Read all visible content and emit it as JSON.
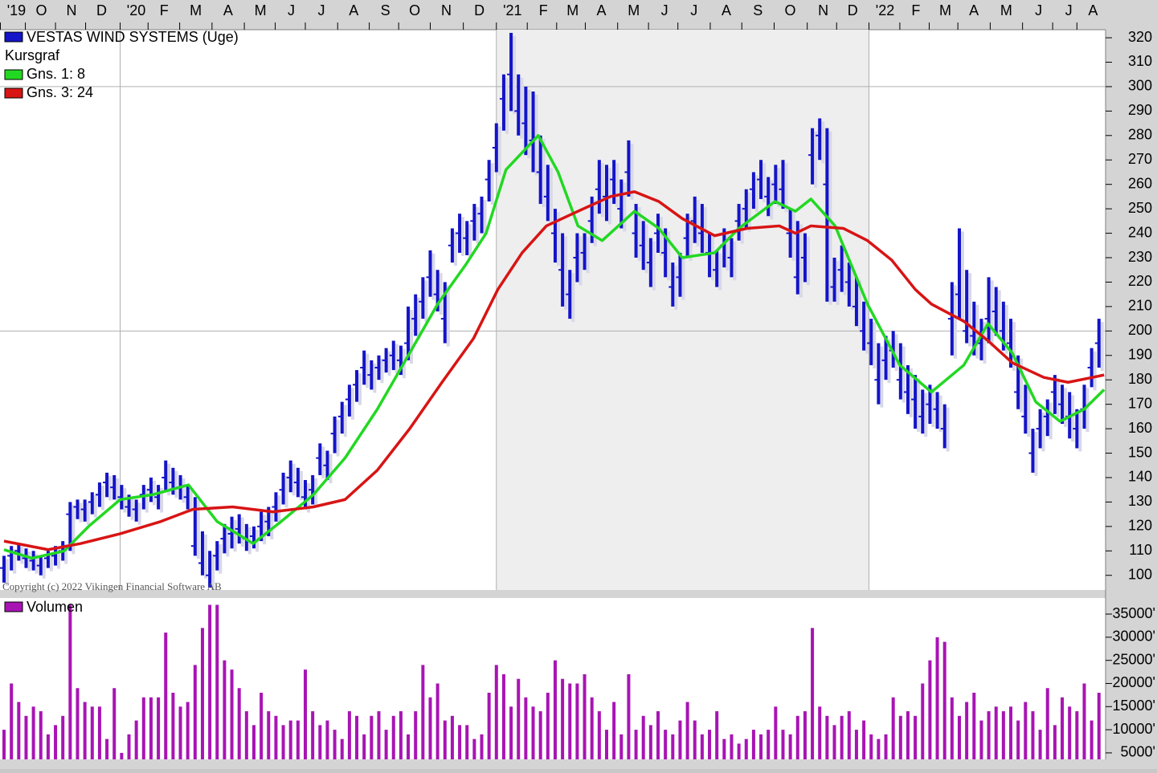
{
  "chart_data": [
    {
      "type": "ohlc",
      "title": "VESTAS WIND SYSTEMS (Uge)",
      "subtitle": "Kursgraf",
      "color": "#1414c8",
      "copyright": "Copyright (c) 2022 Vikingen Financial Software AB",
      "high": [
        108,
        112,
        113,
        111,
        110,
        108,
        110,
        112,
        114,
        130,
        131,
        131,
        134,
        138,
        142,
        141,
        137,
        133,
        131,
        137,
        140,
        137,
        147,
        144,
        141,
        137,
        132,
        118,
        110,
        114,
        121,
        124,
        125,
        121,
        120,
        126,
        128,
        134,
        142,
        147,
        144,
        139,
        141,
        154,
        151,
        165,
        171,
        178,
        184,
        192,
        188,
        190,
        193,
        196,
        194,
        210,
        215,
        222,
        233,
        225,
        220,
        242,
        248,
        245,
        252,
        255,
        270,
        285,
        305,
        322,
        305,
        300,
        298,
        280,
        268,
        250,
        240,
        225,
        240,
        240,
        255,
        270,
        268,
        270,
        262,
        278,
        252,
        245,
        238,
        248,
        242,
        228,
        232,
        248,
        255,
        252,
        240,
        233,
        242,
        238,
        252,
        258,
        265,
        270,
        263,
        268,
        270,
        250,
        245,
        240,
        283,
        287,
        283,
        230,
        235,
        228,
        222,
        212,
        205,
        195,
        198,
        200,
        195,
        186,
        182,
        176,
        178,
        175,
        170,
        220,
        242,
        225,
        212,
        205,
        222,
        218,
        212,
        205,
        190,
        178,
        160,
        168,
        172,
        182,
        178,
        175,
        168,
        178,
        193,
        205
      ],
      "low": [
        97,
        102,
        106,
        103,
        102,
        100,
        103,
        104,
        106,
        110,
        123,
        122,
        125,
        128,
        132,
        131,
        127,
        124,
        122,
        127,
        130,
        127,
        134,
        133,
        131,
        127,
        108,
        100,
        95,
        102,
        109,
        111,
        113,
        110,
        111,
        114,
        116,
        122,
        129,
        134,
        132,
        127,
        129,
        141,
        139,
        150,
        158,
        165,
        171,
        178,
        176,
        180,
        183,
        184,
        182,
        188,
        198,
        205,
        214,
        208,
        195,
        228,
        232,
        231,
        237,
        240,
        253,
        265,
        282,
        290,
        280,
        272,
        265,
        252,
        245,
        228,
        210,
        205,
        220,
        225,
        236,
        248,
        245,
        252,
        242,
        255,
        230,
        225,
        218,
        232,
        222,
        210,
        214,
        230,
        236,
        232,
        222,
        218,
        226,
        222,
        237,
        242,
        250,
        254,
        247,
        252,
        250,
        230,
        215,
        220,
        260,
        270,
        212,
        212,
        216,
        210,
        202,
        192,
        186,
        170,
        180,
        185,
        172,
        166,
        160,
        158,
        162,
        160,
        152,
        190,
        205,
        195,
        190,
        188,
        195,
        198,
        192,
        185,
        168,
        158,
        142,
        152,
        157,
        166,
        162,
        156,
        152,
        160,
        177,
        185
      ],
      "close": [
        103,
        108,
        110,
        107,
        106,
        104,
        107,
        108,
        110,
        125,
        128,
        127,
        130,
        133,
        138,
        136,
        132,
        128,
        127,
        133,
        135,
        132,
        140,
        138,
        136,
        132,
        112,
        105,
        100,
        108,
        115,
        117,
        119,
        115,
        116,
        120,
        122,
        128,
        135,
        140,
        138,
        132,
        135,
        148,
        145,
        158,
        165,
        172,
        178,
        185,
        182,
        185,
        188,
        190,
        188,
        195,
        205,
        212,
        222,
        215,
        205,
        235,
        240,
        238,
        245,
        248,
        262,
        275,
        295,
        305,
        290,
        285,
        278,
        265,
        255,
        240,
        225,
        215,
        230,
        232,
        245,
        258,
        255,
        262,
        250,
        265,
        240,
        235,
        228,
        240,
        232,
        218,
        222,
        238,
        245,
        240,
        232,
        225,
        235,
        230,
        245,
        250,
        258,
        262,
        255,
        260,
        258,
        240,
        222,
        230,
        272,
        280,
        260,
        218,
        225,
        220,
        210,
        200,
        195,
        180,
        188,
        192,
        180,
        175,
        172,
        165,
        170,
        168,
        160,
        205,
        215,
        200,
        198,
        195,
        205,
        208,
        200,
        195,
        175,
        165,
        150,
        160,
        165,
        175,
        170,
        165,
        160,
        168,
        185,
        195
      ],
      "overlays": [
        {
          "name": "Gns. 1: 8",
          "color": "#22d822",
          "x": [
            0,
            3.8,
            8.2,
            11.5,
            15.8,
            20.2,
            25.1,
            29,
            33.9,
            37.7,
            42.1,
            46.4,
            50.8,
            55.2,
            59,
            62.8,
            65.6,
            68.3,
            72.7,
            75.4,
            78.1,
            81.4,
            85.8,
            89.1,
            92.3,
            96.7,
            100,
            104.9,
            107.7,
            109.8,
            113.1,
            117.5,
            121.9,
            126.2,
            130.6,
            133.9,
            137.2,
            140.4,
            143.7,
            147,
            149.7
          ],
          "values": [
            110.5,
            107,
            110,
            120,
            131,
            133,
            137,
            122,
            113,
            122,
            133,
            148,
            168,
            191,
            211,
            227,
            240,
            266,
            280,
            265,
            243,
            237,
            249,
            242,
            230,
            232,
            242,
            253,
            249,
            254,
            243,
            211,
            186,
            175,
            186,
            203,
            191,
            171,
            163,
            168,
            176
          ]
        },
        {
          "name": "Gns. 3: 24",
          "color": "#d81414",
          "x": [
            0,
            6,
            10.4,
            15.8,
            21.3,
            25.7,
            31.1,
            36.6,
            42.1,
            46.4,
            50.8,
            55.2,
            59.6,
            63.9,
            67.2,
            70.5,
            73.8,
            78.1,
            82.5,
            85.8,
            89.1,
            92.3,
            96.7,
            101.1,
            105.5,
            107.7,
            109.8,
            114.2,
            117.5,
            120.8,
            124,
            126.2,
            130.6,
            133.9,
            137.2,
            141.5,
            144.8,
            148.1,
            149.7
          ],
          "values": [
            114,
            110.5,
            113,
            117,
            122,
            127,
            128,
            126,
            128,
            131,
            143,
            160,
            179,
            197,
            217,
            232,
            243,
            249,
            255,
            257,
            253,
            246,
            239,
            242,
            243,
            240,
            243,
            242,
            237,
            229,
            217,
            211,
            204,
            196,
            187,
            181,
            179,
            181,
            182
          ]
        }
      ],
      "xlim": [
        -0.55,
        149.9
      ],
      "xticks": [
        {
          "value": -0.5,
          "label": "'19"
        },
        {
          "value": 2.9,
          "label": "O"
        },
        {
          "value": 7,
          "label": "N"
        },
        {
          "value": 11.1,
          "label": "D"
        },
        {
          "value": 15.8,
          "label": "'20"
        },
        {
          "value": 19.6,
          "label": "F"
        },
        {
          "value": 23.9,
          "label": "M"
        },
        {
          "value": 28.3,
          "label": "A"
        },
        {
          "value": 32.7,
          "label": "M"
        },
        {
          "value": 36.9,
          "label": "J"
        },
        {
          "value": 41,
          "label": "J"
        },
        {
          "value": 45.4,
          "label": "A"
        },
        {
          "value": 49.7,
          "label": "S"
        },
        {
          "value": 53.7,
          "label": "O"
        },
        {
          "value": 58,
          "label": "N"
        },
        {
          "value": 62.5,
          "label": "D"
        },
        {
          "value": 67,
          "label": "'21"
        },
        {
          "value": 71.2,
          "label": "F"
        },
        {
          "value": 75.2,
          "label": "M"
        },
        {
          "value": 79.1,
          "label": "A"
        },
        {
          "value": 83.5,
          "label": "M"
        },
        {
          "value": 87.7,
          "label": "J"
        },
        {
          "value": 91.7,
          "label": "J"
        },
        {
          "value": 96.1,
          "label": "A"
        },
        {
          "value": 100.4,
          "label": "S"
        },
        {
          "value": 104.8,
          "label": "O"
        },
        {
          "value": 109.3,
          "label": "N"
        },
        {
          "value": 113.3,
          "label": "D"
        },
        {
          "value": 117.7,
          "label": "'22"
        },
        {
          "value": 121.9,
          "label": "F"
        },
        {
          "value": 125.9,
          "label": "M"
        },
        {
          "value": 129.8,
          "label": "A"
        },
        {
          "value": 134.2,
          "label": "M"
        },
        {
          "value": 138.6,
          "label": "J"
        },
        {
          "value": 142.7,
          "label": "J"
        },
        {
          "value": 146,
          "label": "A"
        }
      ],
      "year_lines": [
        15.8,
        67,
        117.7
      ],
      "shaded": [
        67,
        117.7
      ],
      "ylim": [
        94,
        323.3
      ],
      "yticks": [
        100,
        110,
        120,
        130,
        140,
        150,
        160,
        170,
        180,
        190,
        200,
        210,
        220,
        230,
        240,
        250,
        260,
        270,
        280,
        290,
        300,
        310,
        320
      ],
      "grid_y": [
        200,
        300
      ]
    },
    {
      "type": "bar",
      "xlim": [
        -0.55,
        149.9
      ],
      "series": [
        {
          "name": "Volumen",
          "color": "#a814b4",
          "values": [
            10000,
            20000,
            16000,
            13000,
            15000,
            14000,
            9000,
            11000,
            13000,
            37000,
            19000,
            16000,
            15000,
            15000,
            8000,
            19000,
            5000,
            9000,
            12000,
            17000,
            17000,
            17000,
            31000,
            18000,
            15000,
            16000,
            24000,
            32000,
            37000,
            37000,
            25000,
            23000,
            19000,
            14000,
            11000,
            18000,
            14000,
            13000,
            11000,
            12000,
            12000,
            23000,
            14000,
            11000,
            12000,
            10000,
            8000,
            14000,
            13000,
            9000,
            13000,
            14000,
            10000,
            13000,
            14000,
            9000,
            14000,
            24000,
            17000,
            20000,
            12000,
            13000,
            11000,
            11000,
            8000,
            9000,
            18000,
            24000,
            22000,
            15000,
            21000,
            17000,
            15000,
            14000,
            18000,
            25000,
            21000,
            20000,
            20000,
            22000,
            17000,
            14000,
            10000,
            16000,
            9000,
            22000,
            10000,
            13000,
            11000,
            14000,
            10000,
            9000,
            12000,
            16000,
            12000,
            9000,
            10000,
            14000,
            8000,
            9000,
            7000,
            8000,
            10000,
            9000,
            10000,
            15000,
            10000,
            9000,
            13000,
            14000,
            32000,
            15000,
            13000,
            11000,
            13000,
            14000,
            10000,
            12000,
            9000,
            8000,
            9000,
            17000,
            13000,
            14000,
            13000,
            20000,
            25000,
            30000,
            29000,
            17000,
            13000,
            16000,
            18000,
            12000,
            14000,
            15000,
            14000,
            15000,
            12000,
            16000,
            14000,
            10000,
            19000,
            11000,
            17000,
            15000,
            14000,
            20000,
            12000,
            18000
          ]
        }
      ],
      "ylim": [
        3600,
        38300
      ],
      "yticks": [
        {
          "value": 5000,
          "label": "5000'"
        },
        {
          "value": 10000,
          "label": "10000'"
        },
        {
          "value": 15000,
          "label": "15000'"
        },
        {
          "value": 20000,
          "label": "20000'"
        },
        {
          "value": 25000,
          "label": "25000'"
        },
        {
          "value": 30000,
          "label": "30000'"
        },
        {
          "value": 35000,
          "label": "35000'"
        }
      ]
    }
  ]
}
